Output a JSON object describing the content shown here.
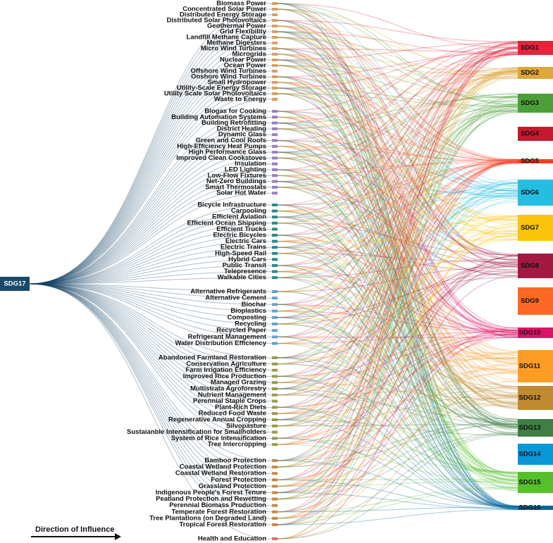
{
  "left_node": {
    "label": "SDG17",
    "color": "#19486a"
  },
  "groups": [
    {
      "color": "#d9a066",
      "nodes": [
        "Biomass Power",
        "Concentrated Solar Power",
        "Distributed Energy Storage",
        "Distributed Solar Photovoltaics",
        "Geothermal Power",
        "Grid Flexibility",
        "Landfill Methane Capture",
        "Methane Digesters",
        "Micro Wind Turbines",
        "Microgrids",
        "Nuclear Power",
        "Ocean Power",
        "Offshore Wind Turbines",
        "Onshore Wind Turbines",
        "Small Hydropower",
        "Utility-Scale Energy Storage",
        "Utility Scale Solar Photovoltaics",
        "Waste to Energy"
      ]
    },
    {
      "color": "#9b7fbf",
      "nodes": [
        "Biogas for Cooking",
        "Building Automation Systems",
        "Building Retrofitting",
        "District Heating",
        "Dynamic Glass",
        "Green and Cool Roofs",
        "High-Efficiency Heat Pumps",
        "High Performance Glass",
        "Improved Clean Cookstoves",
        "Insulation",
        "LED Lighting",
        "Low-Flow Fixtures",
        "Net-Zero Buildings",
        "Smart Thermostats",
        "Solar Hot Water"
      ]
    },
    {
      "color": "#2a8a8a",
      "nodes": [
        "Bicycle Infrastructure",
        "Carpooling",
        "Efficient Aviation",
        "Efficient Ocean Shipping",
        "Efficient Trucks",
        "Electric Bicycles",
        "Electric Cars",
        "Electric Trains",
        "High-Speed Rail",
        "Hybrid Cars",
        "Public Transit",
        "Telepresence",
        "Walkable Cities"
      ]
    },
    {
      "color": "#6a9fd0",
      "nodes": [
        "Alternative Refrigerants",
        "Alternative Cement",
        "Biochar",
        "Bioplastics",
        "Composting",
        "Recycling",
        "Recycled Paper",
        "Refrigerant Management",
        "Water Distribution Efficiency"
      ]
    },
    {
      "color": "#9a9a50",
      "nodes": [
        "Abandoned Farmland Restoration",
        "Conservation Agriculture",
        "Farm Irrigation Efficiency",
        "Improved Rice Production",
        "Managed Grazing",
        "Multistrata Agroforestry",
        "Nutrient Management",
        "Perennial Staple Crops",
        "Plant-Rich Diets",
        "Reduced Food Waste",
        "Regenerative Annual Cropping",
        "Silvopasture",
        "Sustaianble Intensification for Smallholders",
        "System of Rice Intensification",
        "Tree Intercropping"
      ]
    },
    {
      "color": "#c98a4a",
      "nodes": [
        "Bamboo Protection",
        "Coastal Wetland Protection",
        "Coastal Wetland Restoration",
        "Forest Protection",
        "Grassland Protection",
        "Indigenous People's Forest Tenure",
        "Peatland Protection and Rewetting",
        "Perennial Biomass Production",
        "Temperate Forest Restoration",
        "Tree Plantations (on Degraded Land)",
        "Tropical Forest Restoration"
      ]
    },
    {
      "color": "#e07070",
      "nodes": [
        "Health and Education"
      ]
    }
  ],
  "right_nodes": [
    {
      "label": "SDG1",
      "color": "#e5243b"
    },
    {
      "label": "SDG2",
      "color": "#dda63a"
    },
    {
      "label": "SDG3",
      "color": "#4c9f38"
    },
    {
      "label": "SDG4",
      "color": "#c5192d"
    },
    {
      "label": "SDG5",
      "color": "#ff3a21"
    },
    {
      "label": "SDG6",
      "color": "#26bde2"
    },
    {
      "label": "SDG7",
      "color": "#fcc30b"
    },
    {
      "label": "SDG8",
      "color": "#a21942"
    },
    {
      "label": "SDG9",
      "color": "#fd6925"
    },
    {
      "label": "SDG10",
      "color": "#dd1367"
    },
    {
      "label": "SDG11",
      "color": "#fd9d24"
    },
    {
      "label": "SDG12",
      "color": "#bf8b2e"
    },
    {
      "label": "SDG13",
      "color": "#3f7e44"
    },
    {
      "label": "SDG14",
      "color": "#0a97d9"
    },
    {
      "label": "SDG15",
      "color": "#56c02b"
    },
    {
      "label": "SDG16",
      "color": "#00689d"
    }
  ],
  "legend": {
    "label": "Direction of Influence"
  }
}
